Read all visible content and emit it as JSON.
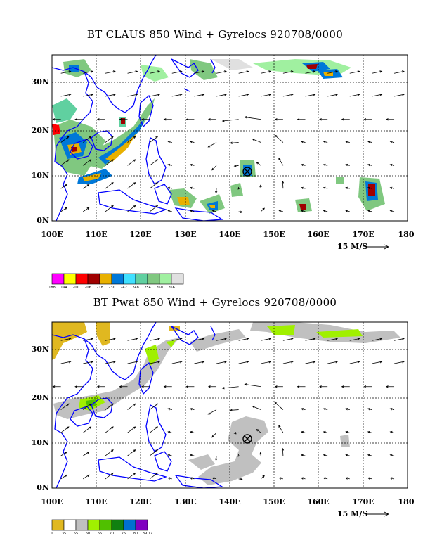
{
  "panels": [
    {
      "title": "BT CLAUS 850 Wind + Gyrelocs 920708/0000",
      "x_ticks": [
        "100E",
        "110E",
        "120E",
        "130E",
        "140E",
        "150E",
        "160E",
        "170E",
        "180"
      ],
      "y_ticks": [
        "30N",
        "20N",
        "10N",
        "0N"
      ],
      "scale_label": "15 M/S",
      "colorbar": {
        "labels": [
          "188",
          "194",
          "200",
          "206",
          "218",
          "230",
          "242",
          "248",
          "254",
          "260",
          "266"
        ],
        "colors": [
          "#ff00ff",
          "#ffff00",
          "#ff0000",
          "#a00000",
          "#e8b000",
          "#0078d8",
          "#40e0ff",
          "#60d0a0",
          "#80c880",
          "#a0f0a0",
          "#e0e0e0"
        ]
      }
    },
    {
      "title": "BT Pwat 850 Wind + Gyrelocs 920708/0000",
      "x_ticks": [
        "100E",
        "110E",
        "120E",
        "130E",
        "140E",
        "150E",
        "160E",
        "170E",
        "180"
      ],
      "y_ticks": [
        "30N",
        "20N",
        "10N",
        "0N"
      ],
      "scale_label": "15 M/S",
      "colorbar": {
        "labels": [
          "0",
          "35",
          "55",
          "60",
          "65",
          "70",
          "75",
          "80",
          "89.17"
        ],
        "colors": [
          "#e0b820",
          "#ffffff",
          "#c0c0c0",
          "#a0f000",
          "#50c000",
          "#108010",
          "#0070d0",
          "#8000c0"
        ]
      }
    }
  ],
  "gyre_marker": {
    "lon": 144,
    "lat": 11.5,
    "symbol": "circle-x"
  },
  "colors": {
    "coastline": "#0000ff",
    "grid": "#000000",
    "arrow": "#000000"
  }
}
